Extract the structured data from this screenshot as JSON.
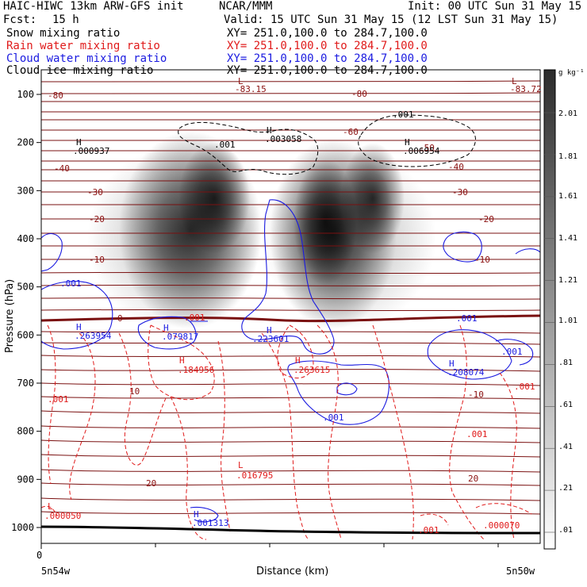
{
  "header": {
    "model": "HAIC-HIWC 13km ARW-GFS init",
    "org": "NCAR/MMM",
    "init": "Init: 00 UTC Sun 31 May 15",
    "fcst_label": "Fcst:",
    "fcst_value": "15 h",
    "valid": "Valid: 15 UTC Sun 31 May 15 (12 LST Sun 31 May 15)"
  },
  "legend": [
    {
      "name": "Snow mixing ratio",
      "xy": "XY= 251.0,100.0 to 284.7,100.0",
      "color": "#000000"
    },
    {
      "name": "Rain water mixing ratio",
      "xy": "XY= 251.0,100.0 to 284.7,100.0",
      "color": "#e01a1a"
    },
    {
      "name": "Cloud water mixing ratio",
      "xy": "XY= 251.0,100.0 to 284.7,100.0",
      "color": "#1a1ae0"
    },
    {
      "name": "Cloud ice mixing ratio",
      "xy": "XY= 251.0,100.0 to 284.7,100.0",
      "color": "#000000"
    }
  ],
  "chart_data": {
    "type": "heatmap",
    "xlabel": "Distance (km)",
    "ylabel": "Pressure (hPa)",
    "x_start_label": "0",
    "x_end_labels": [
      "5n54w",
      "5n50w"
    ],
    "yticks": [
      100,
      200,
      300,
      400,
      500,
      600,
      700,
      800,
      900,
      1000
    ],
    "ylim": [
      1050,
      50
    ],
    "colorbar": {
      "unit": "g kg⁻¹",
      "levels": [
        "2.01",
        "1.81",
        "1.61",
        "1.41",
        "1.21",
        "1.01",
        ".81",
        ".61",
        ".41",
        ".21",
        ".01"
      ]
    },
    "temperature_labels": [
      "-80",
      "-80",
      "-60",
      "-50",
      "-40",
      "-40",
      "-30",
      "-30",
      "-20",
      "-20",
      "-10",
      "-10",
      "0",
      "-10",
      "10",
      "20",
      "20"
    ],
    "extrema_labels": [
      {
        "type": "L",
        "value": "-83.15",
        "series": "temperature"
      },
      {
        "type": "L",
        "value": "-83.72",
        "series": "temperature"
      },
      {
        "type": "H",
        "value": ".000937",
        "series": "cloud ice"
      },
      {
        "type": "H",
        "value": ".003058",
        "series": "cloud ice"
      },
      {
        "type": "H",
        "value": ".006954",
        "series": "cloud ice"
      },
      {
        "type": "H",
        "value": ".263954",
        "series": "cloud water"
      },
      {
        "type": "H",
        "value": ".079817",
        "series": "cloud water"
      },
      {
        "type": "H",
        "value": ".223601",
        "series": "cloud water"
      },
      {
        "type": "H",
        "value": ".208074",
        "series": "cloud water"
      },
      {
        "type": "H",
        "value": ".184956",
        "series": "rain water"
      },
      {
        "type": "H",
        "value": ".263615",
        "series": "rain water"
      },
      {
        "type": "L",
        "value": ".016795",
        "series": "rain water"
      },
      {
        "type": "L",
        "value": ".000050",
        "series": "rain water"
      },
      {
        "type": "L",
        "value": ".000070",
        "series": "rain water"
      },
      {
        "type": "H",
        "value": ".001313",
        "series": "cloud water"
      }
    ],
    "contour_labels": [
      {
        "value": ".001",
        "series": "cloud ice"
      },
      {
        "value": ".001",
        "series": "cloud ice"
      },
      {
        "value": ".001",
        "series": "cloud water"
      },
      {
        "value": ".001",
        "series": "cloud water"
      },
      {
        "value": ".001",
        "series": "cloud water"
      },
      {
        "value": ".001",
        "series": "cloud water"
      },
      {
        "value": ".001",
        "series": "rain water"
      },
      {
        "value": ".001",
        "series": "rain water"
      },
      {
        "value": ".001",
        "series": "rain water"
      },
      {
        "value": ".001",
        "series": "rain water"
      },
      {
        "value": ".001",
        "series": "rain water"
      }
    ]
  }
}
